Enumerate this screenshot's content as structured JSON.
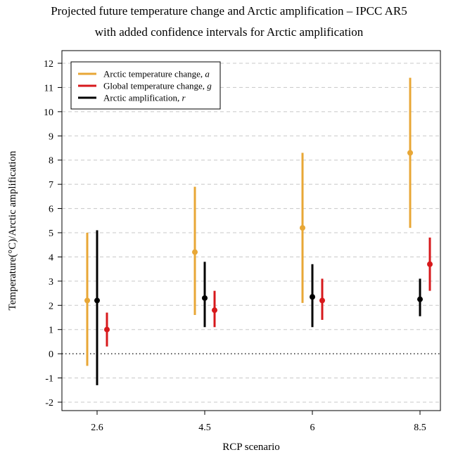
{
  "chart_data": {
    "type": "errorbar",
    "title": "Projected future temperature change and Arctic amplification – IPCC AR5",
    "subtitle": "with added confidence intervals for Arctic amplification",
    "xlabel": "RCP scenario",
    "ylabel": "Temperature(°C)/Arctic amplification",
    "categories": [
      "2.6",
      "4.5",
      "6",
      "8.5"
    ],
    "yticks": [
      "-2",
      "-1",
      "0",
      "1",
      "2",
      "3",
      "4",
      "5",
      "6",
      "7",
      "8",
      "9",
      "10",
      "11",
      "12"
    ],
    "ylim": [
      -2,
      12
    ],
    "grid": "horizontal dashed",
    "reference_line": 0,
    "legend_position": "top-left",
    "series": [
      {
        "name": "Arctic temperature change, ",
        "symbol": "a",
        "color": "#E8A736",
        "points": [
          {
            "category": "2.6",
            "center": 2.2,
            "low": -0.5,
            "high": 5.0
          },
          {
            "category": "4.5",
            "center": 4.2,
            "low": 1.6,
            "high": 6.9
          },
          {
            "category": "6",
            "center": 5.2,
            "low": 2.1,
            "high": 8.3
          },
          {
            "category": "8.5",
            "center": 8.3,
            "low": 5.2,
            "high": 11.4
          }
        ]
      },
      {
        "name": "Global temperature change, ",
        "symbol": "g",
        "color": "#D7191C",
        "points": [
          {
            "category": "2.6",
            "center": 1.0,
            "low": 0.3,
            "high": 1.7
          },
          {
            "category": "4.5",
            "center": 1.8,
            "low": 1.1,
            "high": 2.6
          },
          {
            "category": "6",
            "center": 2.2,
            "low": 1.4,
            "high": 3.1
          },
          {
            "category": "8.5",
            "center": 3.7,
            "low": 2.6,
            "high": 4.8
          }
        ]
      },
      {
        "name": "Arctic amplification, ",
        "symbol": "r",
        "color": "#000000",
        "points": [
          {
            "category": "2.6",
            "center": 2.2,
            "low": -1.3,
            "high": 5.1
          },
          {
            "category": "4.5",
            "center": 2.3,
            "low": 1.1,
            "high": 3.8
          },
          {
            "category": "6",
            "center": 2.35,
            "low": 1.1,
            "high": 3.7
          },
          {
            "category": "8.5",
            "center": 2.25,
            "low": 1.55,
            "high": 3.1
          }
        ]
      }
    ]
  }
}
